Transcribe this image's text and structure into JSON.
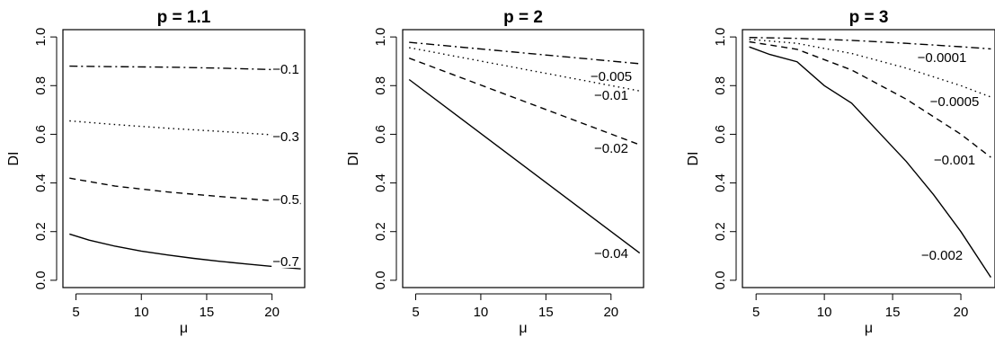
{
  "chart_data": [
    {
      "type": "line",
      "title": "p = 1.1",
      "xlabel": "μ",
      "ylabel": "DI",
      "xlim": [
        4,
        22.5
      ],
      "ylim": [
        -0.03,
        1.03
      ],
      "xticks": [
        5,
        10,
        15,
        20
      ],
      "yticks": [
        0.0,
        0.2,
        0.4,
        0.6,
        0.8,
        1.0
      ],
      "ytick_labels": [
        "0.0",
        "0.2",
        "0.4",
        "0.6",
        "0.8",
        "1.0"
      ],
      "series": [
        {
          "label": "−0.1",
          "style": "dashdot",
          "x": [
            4.5,
            8,
            12,
            16,
            20,
            22.2
          ],
          "y": [
            0.88,
            0.878,
            0.876,
            0.872,
            0.866,
            0.862
          ]
        },
        {
          "label": "−0.3",
          "style": "dotted",
          "x": [
            4.5,
            8,
            12,
            16,
            20,
            22.2
          ],
          "y": [
            0.655,
            0.64,
            0.625,
            0.612,
            0.598,
            0.59
          ]
        },
        {
          "label": "−0.5",
          "style": "dashed",
          "x": [
            4.5,
            8,
            12,
            16,
            20,
            22.2
          ],
          "y": [
            0.42,
            0.387,
            0.363,
            0.344,
            0.327,
            0.315
          ]
        },
        {
          "label": "−0.7",
          "style": "solid",
          "x": [
            4.5,
            6,
            8,
            10,
            12,
            14,
            16,
            18,
            20,
            22.2
          ],
          "y": [
            0.19,
            0.165,
            0.14,
            0.12,
            0.104,
            0.09,
            0.078,
            0.067,
            0.057,
            0.047
          ]
        }
      ]
    },
    {
      "type": "line",
      "title": "p = 2",
      "xlabel": "μ",
      "ylabel": "DI",
      "xlim": [
        4,
        22.5
      ],
      "ylim": [
        -0.03,
        1.03
      ],
      "xticks": [
        5,
        10,
        15,
        20
      ],
      "yticks": [
        0.0,
        0.2,
        0.4,
        0.6,
        0.8,
        1.0
      ],
      "ytick_labels": [
        "0.0",
        "0.2",
        "0.4",
        "0.6",
        "0.8",
        "1.0"
      ],
      "series": [
        {
          "label": "−0.005",
          "style": "dashdot",
          "x": [
            4.5,
            22.2
          ],
          "y": [
            0.978,
            0.89
          ]
        },
        {
          "label": "−0.01",
          "style": "dotted",
          "x": [
            4.5,
            22.2
          ],
          "y": [
            0.956,
            0.778
          ]
        },
        {
          "label": "−0.02",
          "style": "dashed",
          "x": [
            4.5,
            22.2
          ],
          "y": [
            0.913,
            0.557
          ]
        },
        {
          "label": "−0.04",
          "style": "solid",
          "x": [
            4.5,
            22.2
          ],
          "y": [
            0.825,
            0.112
          ]
        }
      ]
    },
    {
      "type": "line",
      "title": "p = 3",
      "xlabel": "μ",
      "ylabel": "DI",
      "xlim": [
        4,
        22.5
      ],
      "ylim": [
        -0.03,
        1.03
      ],
      "xticks": [
        5,
        10,
        15,
        20
      ],
      "yticks": [
        0.0,
        0.2,
        0.4,
        0.6,
        0.8,
        1.0
      ],
      "ytick_labels": [
        "0.0",
        "0.2",
        "0.4",
        "0.6",
        "0.8",
        "1.0"
      ],
      "series": [
        {
          "label": "−0.0001",
          "style": "dashdot",
          "x": [
            4.5,
            8,
            12,
            16,
            20,
            22.2
          ],
          "y": [
            0.998,
            0.994,
            0.986,
            0.974,
            0.96,
            0.951
          ]
        },
        {
          "label": "−0.0005",
          "style": "dotted",
          "x": [
            4.5,
            8,
            12,
            16,
            20,
            22.2
          ],
          "y": [
            0.99,
            0.974,
            0.932,
            0.872,
            0.8,
            0.753
          ]
        },
        {
          "label": "−0.001",
          "style": "dashed",
          "x": [
            4.5,
            8,
            12,
            16,
            20,
            22.2
          ],
          "y": [
            0.98,
            0.949,
            0.864,
            0.744,
            0.6,
            0.505
          ]
        },
        {
          "label": "−0.002",
          "style": "solid",
          "x": [
            4.5,
            6,
            8,
            10,
            12,
            14,
            16,
            18,
            20,
            22.2
          ],
          "y": [
            0.959,
            0.928,
            0.898,
            0.8,
            0.728,
            0.608,
            0.488,
            0.352,
            0.2,
            0.012
          ]
        }
      ]
    }
  ]
}
